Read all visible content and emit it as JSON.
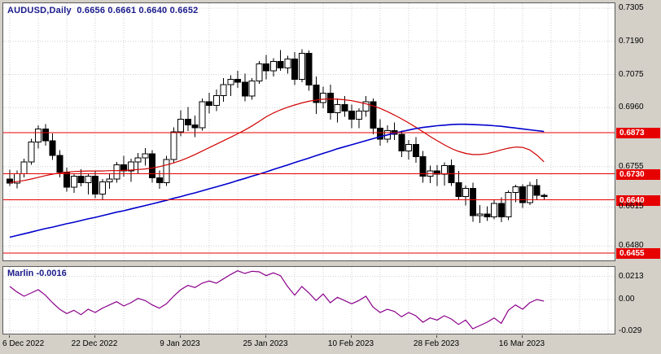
{
  "window": {
    "title": "AUDUSD,Daily  0.6656 0.6661 0.6640 0.6652"
  },
  "colors": {
    "up_candle": "#ffffff",
    "down_candle": "#000000",
    "candle_outline": "#000000",
    "ma_fast": "#d00000",
    "ma_slow": "#0000cd",
    "level_line": "#e60000",
    "level_tag_bg": "#e60000",
    "level_tag_text": "#ffffff",
    "indicator_line": "#8b008b",
    "grid": "#cfcfcf",
    "axis_text": "#000000",
    "title_text": "#1a1a8c"
  },
  "chart_data": {
    "type": "candlestick",
    "symbol": "AUDUSD",
    "timeframe": "Daily",
    "quote": {
      "open": "0.6656",
      "high": "0.6661",
      "low": "0.6640",
      "close": "0.6652"
    },
    "x_axis": {
      "labels": [
        {
          "text": "6 Dec 2022",
          "index": 0
        },
        {
          "text": "22 Dec 2022",
          "index": 12
        },
        {
          "text": "9 Jan 2023",
          "index": 24
        },
        {
          "text": "25 Jan 2023",
          "index": 36
        },
        {
          "text": "10 Feb 2023",
          "index": 48
        },
        {
          "text": "28 Feb 2023",
          "index": 60
        },
        {
          "text": "16 Mar 2023",
          "index": 72
        }
      ]
    },
    "y_axis_main": {
      "range_top": 0.7322,
      "range_bottom": 0.643,
      "labels": [
        {
          "text": "0.7305",
          "value": 0.7305
        },
        {
          "text": "0.7190",
          "value": 0.719
        },
        {
          "text": "0.7075",
          "value": 0.7075
        },
        {
          "text": "0.6960",
          "value": 0.696
        },
        {
          "text": "0.6755",
          "value": 0.6755
        },
        {
          "text": "0.6615",
          "value": 0.6615
        },
        {
          "text": "0.6480",
          "value": 0.648
        }
      ]
    },
    "levels": [
      {
        "text": "0.6873",
        "value": 0.6873
      },
      {
        "text": "0.6730",
        "value": 0.673
      },
      {
        "text": "0.6640",
        "value": 0.664
      },
      {
        "text": "0.6455",
        "value": 0.6455
      }
    ],
    "candles": [
      [
        0.6712,
        0.6745,
        0.6688,
        0.6698
      ],
      [
        0.6698,
        0.6742,
        0.668,
        0.673
      ],
      [
        0.673,
        0.6782,
        0.6718,
        0.6772
      ],
      [
        0.6772,
        0.6852,
        0.6762,
        0.684
      ],
      [
        0.684,
        0.6898,
        0.6818,
        0.6886
      ],
      [
        0.6886,
        0.6902,
        0.6828,
        0.6845
      ],
      [
        0.6845,
        0.687,
        0.6778,
        0.6794
      ],
      [
        0.6794,
        0.6812,
        0.6718,
        0.6736
      ],
      [
        0.6736,
        0.6752,
        0.6668,
        0.6684
      ],
      [
        0.6684,
        0.6732,
        0.6664,
        0.6722
      ],
      [
        0.6722,
        0.6746,
        0.6686,
        0.67
      ],
      [
        0.67,
        0.6732,
        0.6658,
        0.6722
      ],
      [
        0.6722,
        0.674,
        0.6646,
        0.666
      ],
      [
        0.666,
        0.6712,
        0.6638,
        0.6702
      ],
      [
        0.6702,
        0.673,
        0.6678,
        0.6712
      ],
      [
        0.6712,
        0.6772,
        0.67,
        0.6762
      ],
      [
        0.6762,
        0.6792,
        0.672,
        0.674
      ],
      [
        0.674,
        0.6782,
        0.6702,
        0.6772
      ],
      [
        0.6772,
        0.6802,
        0.673,
        0.6786
      ],
      [
        0.6786,
        0.682,
        0.6758,
        0.68
      ],
      [
        0.68,
        0.6812,
        0.67,
        0.6716
      ],
      [
        0.6716,
        0.6742,
        0.6678,
        0.67
      ],
      [
        0.67,
        0.6792,
        0.6688,
        0.678
      ],
      [
        0.678,
        0.6892,
        0.677,
        0.6876
      ],
      [
        0.6876,
        0.695,
        0.686,
        0.692
      ],
      [
        0.692,
        0.6962,
        0.6878,
        0.69
      ],
      [
        0.69,
        0.6932,
        0.6858,
        0.689
      ],
      [
        0.689,
        0.6992,
        0.688,
        0.698
      ],
      [
        0.698,
        0.7012,
        0.694,
        0.6968
      ],
      [
        0.6968,
        0.7022,
        0.6948,
        0.7002
      ],
      [
        0.7002,
        0.7062,
        0.698,
        0.704
      ],
      [
        0.704,
        0.7072,
        0.7,
        0.7058
      ],
      [
        0.7058,
        0.7088,
        0.7028,
        0.7048
      ],
      [
        0.7048,
        0.7078,
        0.6982,
        0.7
      ],
      [
        0.7,
        0.7062,
        0.6988,
        0.7052
      ],
      [
        0.7052,
        0.7122,
        0.7042,
        0.7112
      ],
      [
        0.7112,
        0.7142,
        0.7058,
        0.7088
      ],
      [
        0.7088,
        0.7132,
        0.7068,
        0.712
      ],
      [
        0.712,
        0.716,
        0.7088,
        0.7098
      ],
      [
        0.7098,
        0.714,
        0.7078,
        0.7128
      ],
      [
        0.7128,
        0.7152,
        0.7038,
        0.7058
      ],
      [
        0.7058,
        0.7162,
        0.7048,
        0.7148
      ],
      [
        0.7148,
        0.7158,
        0.7018,
        0.7038
      ],
      [
        0.7038,
        0.7068,
        0.6938,
        0.6978
      ],
      [
        0.6978,
        0.7032,
        0.6958,
        0.701
      ],
      [
        0.701,
        0.704,
        0.6918,
        0.6942
      ],
      [
        0.6942,
        0.6992,
        0.6908,
        0.697
      ],
      [
        0.697,
        0.7,
        0.6928,
        0.6948
      ],
      [
        0.6948,
        0.697,
        0.6888,
        0.692
      ],
      [
        0.692,
        0.6958,
        0.6888,
        0.6948
      ],
      [
        0.6948,
        0.7,
        0.6928,
        0.698
      ],
      [
        0.698,
        0.6992,
        0.6868,
        0.6888
      ],
      [
        0.6888,
        0.692,
        0.6828,
        0.685
      ],
      [
        0.685,
        0.6898,
        0.6838,
        0.688
      ],
      [
        0.688,
        0.6908,
        0.6848,
        0.6868
      ],
      [
        0.6868,
        0.688,
        0.6788,
        0.681
      ],
      [
        0.681,
        0.6848,
        0.678,
        0.6832
      ],
      [
        0.6832,
        0.6858,
        0.6768,
        0.679
      ],
      [
        0.679,
        0.681,
        0.67,
        0.6722
      ],
      [
        0.6722,
        0.6758,
        0.6698,
        0.674
      ],
      [
        0.674,
        0.676,
        0.6688,
        0.6729
      ],
      [
        0.6729,
        0.677,
        0.669,
        0.6758
      ],
      [
        0.6758,
        0.678,
        0.6688,
        0.67
      ],
      [
        0.67,
        0.674,
        0.664,
        0.6652
      ],
      [
        0.6652,
        0.669,
        0.662,
        0.668
      ],
      [
        0.668,
        0.67,
        0.6564,
        0.6585
      ],
      [
        0.6585,
        0.6622,
        0.656,
        0.659
      ],
      [
        0.659,
        0.6618,
        0.6566,
        0.658
      ],
      [
        0.658,
        0.664,
        0.6572,
        0.6628
      ],
      [
        0.6628,
        0.6648,
        0.6562,
        0.658
      ],
      [
        0.658,
        0.6672,
        0.657,
        0.6665
      ],
      [
        0.6665,
        0.6692,
        0.6632,
        0.6685
      ],
      [
        0.6685,
        0.6694,
        0.6612,
        0.663
      ],
      [
        0.663,
        0.6702,
        0.6622,
        0.669
      ],
      [
        0.669,
        0.6712,
        0.6642,
        0.6656
      ],
      [
        0.6656,
        0.6661,
        0.664,
        0.6652
      ]
    ],
    "ma_fast": [
      0.67,
      0.6703,
      0.6707,
      0.6712,
      0.6718,
      0.6724,
      0.6729,
      0.6733,
      0.6736,
      0.6738,
      0.6739,
      0.674,
      0.674,
      0.674,
      0.6741,
      0.6741,
      0.6742,
      0.6743,
      0.6745,
      0.6747,
      0.675,
      0.6755,
      0.6761,
      0.6768,
      0.6776,
      0.6786,
      0.6797,
      0.6809,
      0.6821,
      0.6833,
      0.6845,
      0.6857,
      0.6869,
      0.6882,
      0.6896,
      0.6912,
      0.6928,
      0.6941,
      0.6952,
      0.6961,
      0.6969,
      0.6976,
      0.6982,
      0.6986,
      0.6989,
      0.699,
      0.6989,
      0.6987,
      0.6984,
      0.6979,
      0.6973,
      0.6966,
      0.6957,
      0.6946,
      0.6934,
      0.6921,
      0.6907,
      0.6892,
      0.6876,
      0.686,
      0.6845,
      0.6831,
      0.6818,
      0.6808,
      0.6801,
      0.6797,
      0.6797,
      0.68,
      0.6806,
      0.6813,
      0.6819,
      0.6823,
      0.6822,
      0.6813,
      0.6795,
      0.6772
    ],
    "ma_slow": [
      0.651,
      0.6516,
      0.6522,
      0.6528,
      0.6534,
      0.654,
      0.6545,
      0.6551,
      0.6557,
      0.6562,
      0.6568,
      0.6574,
      0.6579,
      0.6585,
      0.6591,
      0.6597,
      0.6602,
      0.6608,
      0.6614,
      0.662,
      0.6626,
      0.6632,
      0.6638,
      0.6645,
      0.6651,
      0.6658,
      0.6664,
      0.6671,
      0.6678,
      0.6685,
      0.6692,
      0.6699,
      0.6707,
      0.6714,
      0.6722,
      0.6729,
      0.6737,
      0.6745,
      0.6753,
      0.6761,
      0.6769,
      0.6777,
      0.6785,
      0.6793,
      0.6801,
      0.6809,
      0.6817,
      0.6824,
      0.6831,
      0.6838,
      0.6845,
      0.6852,
      0.6859,
      0.6865,
      0.6871,
      0.6877,
      0.6882,
      0.6887,
      0.6891,
      0.6894,
      0.6897,
      0.6899,
      0.6901,
      0.6902,
      0.6902,
      0.6901,
      0.69,
      0.6899,
      0.6897,
      0.6895,
      0.6892,
      0.6889,
      0.6886,
      0.6883,
      0.688,
      0.6877
    ],
    "indicator": {
      "name": "Marlin",
      "current": "-0.0016",
      "y_labels": [
        {
          "text": "0.0213",
          "value": 0.0213
        },
        {
          "text": "0.00",
          "value": 0
        },
        {
          "text": "-0.029",
          "value": -0.029
        }
      ],
      "values": [
        0.012,
        0.007,
        0.003,
        0.006,
        0.009,
        0.004,
        -0.003,
        -0.009,
        -0.013,
        -0.01,
        -0.014,
        -0.009,
        -0.012,
        -0.008,
        -0.005,
        -0.002,
        -0.006,
        -0.003,
        0.001,
        -0.001,
        -0.005,
        -0.008,
        -0.004,
        0.003,
        0.009,
        0.013,
        0.011,
        0.015,
        0.017,
        0.015,
        0.019,
        0.023,
        0.0265,
        0.024,
        0.026,
        0.0255,
        0.022,
        0.0245,
        0.022,
        0.012,
        0.004,
        0.012,
        0.006,
        -0.001,
        0.005,
        -0.003,
        0.002,
        -0.001,
        -0.004,
        -0.001,
        0.003,
        -0.007,
        -0.012,
        -0.009,
        -0.011,
        -0.016,
        -0.012,
        -0.015,
        -0.021,
        -0.017,
        -0.019,
        -0.015,
        -0.018,
        -0.023,
        -0.019,
        -0.027,
        -0.024,
        -0.021,
        -0.017,
        -0.022,
        -0.01,
        -0.005,
        -0.009,
        -0.003,
        0.0,
        -0.0016
      ]
    }
  }
}
